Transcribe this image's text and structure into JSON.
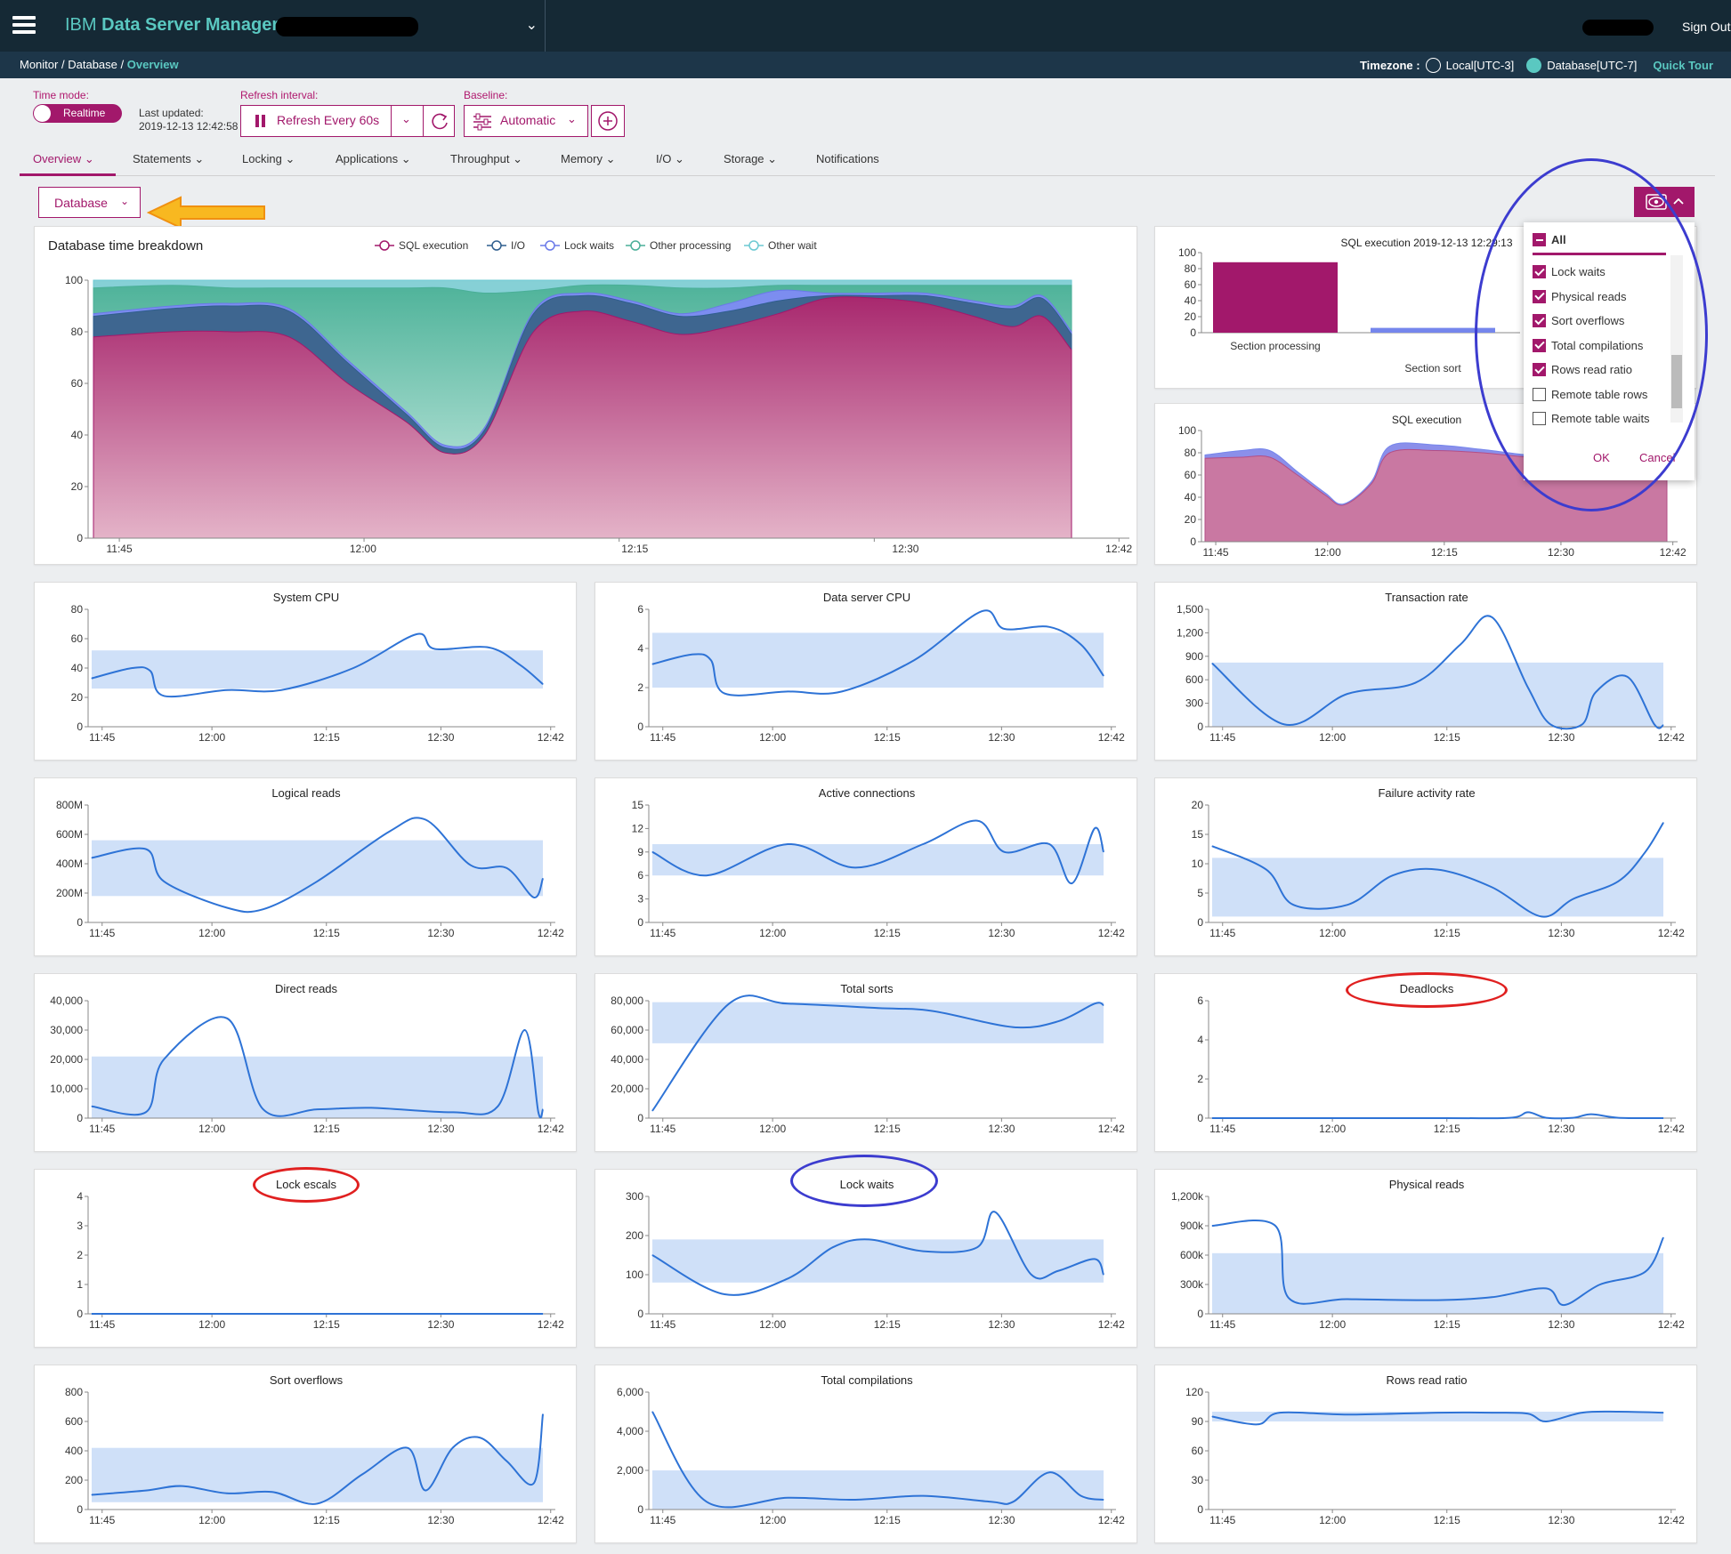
{
  "header": {
    "brand_prefix": "IBM",
    "brand_name": "Data Server Manager",
    "sign_out": "Sign Out"
  },
  "breadcrumb": {
    "monitor": "Monitor",
    "database": "Database",
    "overview": "Overview",
    "sep": "/"
  },
  "timezone": {
    "label": "Timezone :",
    "local": "Local[UTC-3]",
    "database": "Database[UTC-7]",
    "quick_tour": "Quick Tour"
  },
  "controls": {
    "time_mode_label": "Time mode:",
    "time_mode_value": "Realtime",
    "last_updated_label": "Last updated:",
    "last_updated_value": "2019-12-13 12:42:58",
    "refresh_label": "Refresh interval:",
    "refresh_value": "Refresh Every 60s",
    "baseline_label": "Baseline:",
    "baseline_value": "Automatic"
  },
  "tabs": [
    "Overview",
    "Statements",
    "Locking",
    "Applications",
    "Throughput",
    "Memory",
    "I/O",
    "Storage",
    "Notifications"
  ],
  "database_dropdown": "Database",
  "colors": {
    "brand": "#a2186b",
    "teal": "#5ac8c1",
    "line": "#2e73d6",
    "band": "#cfe0f8",
    "topbar": "#152935"
  },
  "column_popup": {
    "all_label": "All",
    "items": [
      {
        "label": "Lock waits",
        "checked": true
      },
      {
        "label": "Physical reads",
        "checked": true
      },
      {
        "label": "Sort overflows",
        "checked": true
      },
      {
        "label": "Total compilations",
        "checked": true
      },
      {
        "label": "Rows read ratio",
        "checked": true
      },
      {
        "label": "Remote table rows",
        "checked": false
      },
      {
        "label": "Remote table waits",
        "checked": false
      }
    ],
    "ok": "OK",
    "cancel": "Cancel"
  },
  "chart_data": [
    {
      "id": "breakdown",
      "type": "area",
      "title": "Database time breakdown",
      "stacked": true,
      "x_ticks": [
        "11:45",
        "12:00",
        "12:15",
        "12:30",
        "12:42"
      ],
      "ylim": [
        0,
        100
      ],
      "yticks": [
        0,
        20,
        40,
        60,
        80,
        100
      ],
      "x": [
        0,
        0.08,
        0.14,
        0.2,
        0.26,
        0.32,
        0.36,
        0.4,
        0.45,
        0.5,
        0.55,
        0.6,
        0.65,
        0.7,
        0.75,
        0.8,
        0.85,
        0.9,
        0.94,
        0.97,
        1.0
      ],
      "series": [
        {
          "name": "SQL execution",
          "values": [
            78,
            80,
            80,
            78,
            60,
            45,
            33,
            40,
            80,
            88,
            84,
            79,
            82,
            87,
            93,
            93,
            91,
            86,
            82,
            86,
            73
          ]
        },
        {
          "name": "I/O",
          "values": [
            8,
            9,
            10,
            10,
            8,
            3,
            2,
            2,
            7,
            6,
            7,
            7,
            6,
            5,
            1,
            1,
            3,
            5,
            7,
            7,
            6
          ]
        },
        {
          "name": "Lock waits",
          "values": [
            1,
            1,
            1,
            1,
            1,
            1,
            1,
            1,
            1,
            1,
            1,
            1,
            3,
            4,
            1,
            1,
            1,
            1,
            1,
            1,
            1
          ]
        },
        {
          "name": "Other processing",
          "values": [
            10,
            8,
            6,
            8,
            28,
            48,
            61,
            52,
            8,
            3,
            6,
            10,
            6,
            2,
            3,
            3,
            3,
            6,
            8,
            4,
            18
          ]
        },
        {
          "name": "Other wait",
          "values": [
            3,
            2,
            3,
            3,
            3,
            3,
            3,
            5,
            4,
            2,
            2,
            3,
            3,
            2,
            2,
            2,
            2,
            2,
            2,
            2,
            2
          ]
        }
      ]
    },
    {
      "id": "sqlexec_bar",
      "type": "bar",
      "title": "SQL execution 2019-12-13 12:29:13",
      "categories": [
        "Section processing",
        "Section sort"
      ],
      "values": [
        88,
        6
      ],
      "ylim": [
        0,
        100
      ],
      "yticks": [
        0,
        20,
        40,
        60,
        80,
        100
      ]
    },
    {
      "id": "sqlexec_area",
      "type": "area",
      "title": "SQL execution",
      "x_ticks": [
        "11:45",
        "12:00",
        "12:15",
        "12:30",
        "12:42"
      ],
      "ylim": [
        0,
        100
      ],
      "yticks": [
        0,
        20,
        40,
        60,
        80,
        100
      ],
      "x": [
        0,
        0.08,
        0.14,
        0.2,
        0.26,
        0.3,
        0.36,
        0.4,
        0.5,
        0.6,
        0.7,
        0.8,
        0.9,
        1.0
      ],
      "series": [
        {
          "name": "",
          "values": [
            75,
            76,
            76,
            60,
            42,
            33,
            52,
            80,
            82,
            80,
            76,
            74,
            72,
            72
          ]
        },
        {
          "name": "",
          "values": [
            3,
            6,
            6,
            3,
            2,
            1,
            2,
            6,
            5,
            3,
            2,
            2,
            2,
            2
          ]
        }
      ]
    },
    {
      "id": "system_cpu",
      "type": "line",
      "title": "System CPU",
      "x_ticks": [
        "11:45",
        "12:00",
        "12:15",
        "12:30",
        "12:42"
      ],
      "ylim": [
        0,
        80
      ],
      "yticks": [
        "0",
        "20",
        "40",
        "60",
        "80"
      ],
      "band": [
        26,
        52
      ],
      "x": [
        0,
        0.09,
        0.13,
        0.16,
        0.3,
        0.42,
        0.58,
        0.72,
        0.76,
        0.88,
        0.95,
        1.0
      ],
      "values": [
        33,
        40,
        38,
        21,
        25,
        25,
        40,
        63,
        53,
        54,
        42,
        29
      ]
    },
    {
      "id": "data_server_cpu",
      "type": "line",
      "title": "Data server CPU",
      "x_ticks": [
        "11:45",
        "12:00",
        "12:15",
        "12:30",
        "12:42"
      ],
      "ylim": [
        0,
        6
      ],
      "yticks": [
        "0",
        "2",
        "4",
        "6"
      ],
      "band": [
        2,
        4.8
      ],
      "x": [
        0,
        0.09,
        0.13,
        0.16,
        0.3,
        0.42,
        0.58,
        0.73,
        0.78,
        0.88,
        0.95,
        1.0
      ],
      "values": [
        3.2,
        3.7,
        3.4,
        1.7,
        1.8,
        1.8,
        3.4,
        5.9,
        5.0,
        5.1,
        4.2,
        2.6
      ]
    },
    {
      "id": "transaction_rate",
      "type": "line",
      "title": "Transaction rate",
      "x_ticks": [
        "11:45",
        "12:00",
        "12:15",
        "12:30",
        "12:42"
      ],
      "ylim": [
        0,
        1500
      ],
      "yticks": [
        "0",
        "300",
        "600",
        "900",
        "1,200",
        "1,500"
      ],
      "band": [
        0,
        820
      ],
      "x": [
        0,
        0.16,
        0.3,
        0.45,
        0.55,
        0.62,
        0.7,
        0.75,
        0.82,
        0.85,
        0.92,
        0.98,
        1.0
      ],
      "values": [
        810,
        30,
        420,
        560,
        1050,
        1400,
        500,
        30,
        30,
        440,
        640,
        30,
        20
      ]
    },
    {
      "id": "logical_reads",
      "type": "line",
      "title": "Logical reads",
      "x_ticks": [
        "11:45",
        "12:00",
        "12:15",
        "12:30",
        "12:42"
      ],
      "ylim": [
        0,
        800
      ],
      "yticks": [
        "0",
        "200M",
        "400M",
        "600M",
        "800M"
      ],
      "band": [
        180,
        560
      ],
      "x": [
        0,
        0.12,
        0.16,
        0.3,
        0.38,
        0.5,
        0.66,
        0.74,
        0.84,
        0.92,
        0.98,
        1.0
      ],
      "values": [
        440,
        500,
        280,
        100,
        90,
        280,
        620,
        700,
        390,
        370,
        170,
        300
      ]
    },
    {
      "id": "active_connections",
      "type": "line",
      "title": "Active connections",
      "x_ticks": [
        "11:45",
        "12:00",
        "12:15",
        "12:30",
        "12:42"
      ],
      "ylim": [
        0,
        15
      ],
      "yticks": [
        "0",
        "3",
        "6",
        "9",
        "12",
        "15"
      ],
      "band": [
        6,
        10
      ],
      "x": [
        0,
        0.12,
        0.3,
        0.45,
        0.6,
        0.72,
        0.78,
        0.88,
        0.93,
        0.98,
        1.0
      ],
      "values": [
        9,
        6,
        10,
        7,
        10,
        13,
        9,
        10,
        5,
        12,
        9
      ]
    },
    {
      "id": "failure_activity_rate",
      "type": "line",
      "title": "Failure activity rate",
      "x_ticks": [
        "11:45",
        "12:00",
        "12:15",
        "12:30",
        "12:42"
      ],
      "ylim": [
        0,
        20
      ],
      "yticks": [
        "0",
        "5",
        "10",
        "15",
        "20"
      ],
      "band": [
        1,
        11
      ],
      "x": [
        0,
        0.12,
        0.18,
        0.3,
        0.4,
        0.5,
        0.62,
        0.73,
        0.8,
        0.9,
        0.96,
        1.0
      ],
      "values": [
        13,
        9,
        3,
        3,
        8,
        9,
        6,
        1,
        4,
        7,
        12,
        17
      ]
    },
    {
      "id": "direct_reads",
      "type": "line",
      "title": "Direct reads",
      "x_ticks": [
        "11:45",
        "12:00",
        "12:15",
        "12:30",
        "12:42"
      ],
      "ylim": [
        0,
        40000
      ],
      "yticks": [
        "0",
        "10,000",
        "20,000",
        "30,000",
        "40,000"
      ],
      "band": [
        0,
        21000
      ],
      "x": [
        0,
        0.12,
        0.16,
        0.3,
        0.38,
        0.5,
        0.62,
        0.8,
        0.9,
        0.96,
        0.99,
        1.0
      ],
      "values": [
        4000,
        2000,
        20000,
        34000,
        3000,
        3000,
        3500,
        2000,
        4000,
        30000,
        2000,
        3000
      ]
    },
    {
      "id": "total_sorts",
      "type": "line",
      "title": "Total sorts",
      "x_ticks": [
        "11:45",
        "12:00",
        "12:15",
        "12:30",
        "12:42"
      ],
      "ylim": [
        0,
        80000
      ],
      "yticks": [
        "0",
        "20,000",
        "40,000",
        "60,000",
        "80,000"
      ],
      "band": [
        51000,
        79000
      ],
      "x": [
        0,
        0.17,
        0.3,
        0.5,
        0.62,
        0.8,
        0.9,
        0.98,
        1.0
      ],
      "values": [
        5000,
        78000,
        78000,
        75000,
        73000,
        62000,
        66000,
        78000,
        77000
      ]
    },
    {
      "id": "deadlocks",
      "type": "line",
      "title": "Deadlocks",
      "x_ticks": [
        "11:45",
        "12:00",
        "12:15",
        "12:30",
        "12:42"
      ],
      "ylim": [
        0,
        6
      ],
      "yticks": [
        "0",
        "2",
        "4",
        "6"
      ],
      "band": null,
      "x": [
        0,
        0.5,
        0.66,
        0.7,
        0.74,
        0.8,
        0.84,
        0.9,
        1.0
      ],
      "values": [
        0,
        0,
        0.02,
        0.3,
        0.02,
        0.02,
        0.2,
        0.02,
        0
      ]
    },
    {
      "id": "lock_escals",
      "type": "line",
      "title": "Lock escals",
      "x_ticks": [
        "11:45",
        "12:00",
        "12:15",
        "12:30",
        "12:42"
      ],
      "ylim": [
        0,
        4
      ],
      "yticks": [
        "0",
        "1",
        "2",
        "3",
        "4"
      ],
      "band": null,
      "x": [
        0,
        1.0
      ],
      "values": [
        0,
        0
      ]
    },
    {
      "id": "lock_waits",
      "type": "line",
      "title": "Lock waits",
      "x_ticks": [
        "11:45",
        "12:00",
        "12:15",
        "12:30",
        "12:42"
      ],
      "ylim": [
        0,
        300
      ],
      "yticks": [
        "0",
        "100",
        "200",
        "300"
      ],
      "band": [
        80,
        190
      ],
      "x": [
        0,
        0.16,
        0.3,
        0.4,
        0.48,
        0.6,
        0.72,
        0.76,
        0.84,
        0.9,
        0.98,
        1.0
      ],
      "values": [
        150,
        50,
        90,
        170,
        190,
        160,
        170,
        260,
        100,
        110,
        140,
        100
      ]
    },
    {
      "id": "physical_reads",
      "type": "line",
      "title": "Physical reads",
      "x_ticks": [
        "11:45",
        "12:00",
        "12:15",
        "12:30",
        "12:42"
      ],
      "ylim": [
        0,
        1200
      ],
      "yticks": [
        "0",
        "300k",
        "600k",
        "900k",
        "1,200k"
      ],
      "band": [
        0,
        620
      ],
      "x": [
        0,
        0.14,
        0.17,
        0.3,
        0.5,
        0.62,
        0.74,
        0.78,
        0.86,
        0.96,
        1.0
      ],
      "values": [
        900,
        900,
        160,
        150,
        140,
        170,
        260,
        90,
        300,
        430,
        780
      ]
    },
    {
      "id": "sort_overflows",
      "type": "line",
      "title": "Sort overflows",
      "x_ticks": [
        "11:45",
        "12:00",
        "12:15",
        "12:30",
        "12:42"
      ],
      "ylim": [
        0,
        800
      ],
      "yticks": [
        "0",
        "200",
        "400",
        "600",
        "800"
      ],
      "band": [
        50,
        420
      ],
      "x": [
        0,
        0.12,
        0.2,
        0.3,
        0.4,
        0.5,
        0.6,
        0.7,
        0.74,
        0.8,
        0.86,
        0.92,
        0.98,
        1.0
      ],
      "values": [
        100,
        130,
        160,
        110,
        120,
        40,
        240,
        420,
        130,
        420,
        490,
        330,
        180,
        650
      ]
    },
    {
      "id": "total_compilations",
      "type": "line",
      "title": "Total compilations",
      "x_ticks": [
        "11:45",
        "12:00",
        "12:15",
        "12:30",
        "12:42"
      ],
      "ylim": [
        0,
        6000
      ],
      "yticks": [
        "0",
        "2,000",
        "4,000",
        "6,000"
      ],
      "band": [
        0,
        2000
      ],
      "x": [
        0,
        0.12,
        0.3,
        0.45,
        0.6,
        0.75,
        0.8,
        0.88,
        0.95,
        1.0
      ],
      "values": [
        5000,
        400,
        600,
        500,
        700,
        400,
        400,
        1900,
        700,
        500
      ]
    },
    {
      "id": "rows_read_ratio",
      "type": "line",
      "title": "Rows read ratio",
      "x_ticks": [
        "11:45",
        "12:00",
        "12:15",
        "12:30",
        "12:42"
      ],
      "ylim": [
        0,
        120
      ],
      "yticks": [
        "0",
        "30",
        "60",
        "90",
        "120"
      ],
      "band": [
        90,
        100
      ],
      "x": [
        0,
        0.1,
        0.15,
        0.3,
        0.5,
        0.62,
        0.7,
        0.74,
        0.82,
        0.9,
        1.0
      ],
      "values": [
        95,
        87,
        99,
        97,
        99,
        99,
        98,
        90,
        99,
        100,
        99
      ]
    }
  ]
}
